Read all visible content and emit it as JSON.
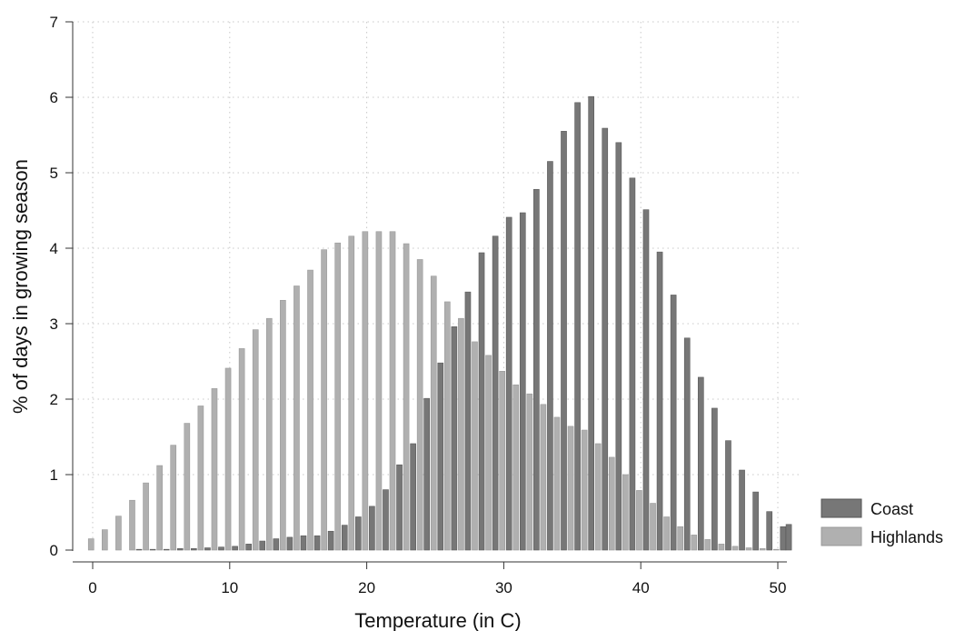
{
  "chart_data": {
    "type": "bar",
    "xlabel": "Temperature (in C)",
    "ylabel": "% of days in growing season",
    "xlim": [
      -1,
      51
    ],
    "ylim": [
      0,
      7
    ],
    "xticks": [
      "0",
      "10",
      "20",
      "30",
      "40",
      "50"
    ],
    "xtick_values": [
      0,
      10,
      20,
      30,
      40,
      50
    ],
    "yticks": [
      "0",
      "1",
      "2",
      "3",
      "4",
      "5",
      "6",
      "7"
    ],
    "ytick_values": [
      0,
      1,
      2,
      3,
      4,
      5,
      6,
      7
    ],
    "grid": true,
    "legend_position": "right",
    "x": [
      0,
      1,
      2,
      3,
      4,
      5,
      6,
      7,
      8,
      9,
      10,
      11,
      12,
      13,
      14,
      15,
      16,
      17,
      18,
      19,
      20,
      21,
      22,
      23,
      24,
      25,
      26,
      27,
      28,
      29,
      30,
      31,
      32,
      33,
      34,
      35,
      36,
      37,
      38,
      39,
      40,
      41,
      42,
      43,
      44,
      45,
      46,
      47,
      48,
      49,
      50
    ],
    "series": [
      {
        "name": "Coast",
        "color": "#777777",
        "values": [
          0,
          0,
          0,
          0.01,
          0.01,
          0.01,
          0.02,
          0.02,
          0.03,
          0.04,
          0.05,
          0.08,
          0.12,
          0.15,
          0.17,
          0.19,
          0.19,
          0.25,
          0.33,
          0.44,
          0.58,
          0.8,
          1.13,
          1.41,
          2.01,
          2.48,
          2.96,
          3.42,
          3.94,
          4.16,
          4.41,
          4.47,
          4.78,
          5.15,
          5.55,
          5.93,
          6.01,
          5.59,
          5.4,
          4.93,
          4.51,
          3.95,
          3.38,
          2.81,
          2.29,
          1.88,
          1.45,
          1.06,
          0.77,
          0.51,
          0.31
        ]
      },
      {
        "name": "Highlands",
        "color": "#b0b0b0",
        "values": [
          0.15,
          0.27,
          0.45,
          0.66,
          0.89,
          1.12,
          1.39,
          1.68,
          1.91,
          2.14,
          2.41,
          2.67,
          2.92,
          3.07,
          3.31,
          3.5,
          3.71,
          3.98,
          4.07,
          4.16,
          4.22,
          4.22,
          4.22,
          4.06,
          3.85,
          3.63,
          3.29,
          3.07,
          2.76,
          2.58,
          2.37,
          2.19,
          2.07,
          1.93,
          1.76,
          1.64,
          1.59,
          1.41,
          1.23,
          1.0,
          0.79,
          0.62,
          0.44,
          0.31,
          0.2,
          0.14,
          0.08,
          0.05,
          0.03,
          0.02,
          0.01
        ]
      }
    ],
    "extra_bars": [
      {
        "series": "Coast",
        "x": 50.6,
        "value": 0.34
      }
    ]
  }
}
